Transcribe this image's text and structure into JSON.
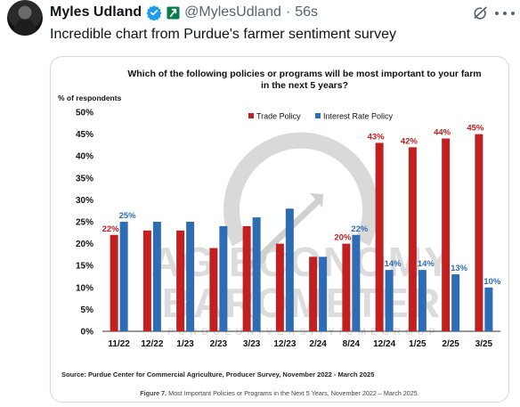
{
  "tweet": {
    "author_name": "Myles Udland",
    "handle": "@MylesUdland",
    "separator": "·",
    "time": "56s",
    "text": "Incredible chart from Purdue's farmer sentiment survey",
    "verified_color": "#1d9bf0",
    "affiliate_color": "#0a7c4c"
  },
  "chart_data": {
    "type": "bar",
    "title": "Which of the following policies or programs will be most important to your farm in the next 5 years?",
    "title_lines": [
      "Which of the following policies or programs will be most important to your farm",
      "in the next 5 years?"
    ],
    "ylabel": "% of respondents",
    "ylim": [
      0,
      50
    ],
    "yticks": [
      "0%",
      "5%",
      "10%",
      "15%",
      "20%",
      "25%",
      "30%",
      "35%",
      "40%",
      "45%",
      "50%"
    ],
    "categories": [
      "11/22",
      "12/22",
      "1/23",
      "2/23",
      "3/23",
      "12/23",
      "2/24",
      "8/24",
      "12/24",
      "1/25",
      "2/25",
      "3/25"
    ],
    "series": [
      {
        "name": "Trade Policy",
        "color": "#c0201f",
        "values": [
          22,
          23,
          23,
          19,
          24,
          20,
          17,
          20,
          43,
          42,
          44,
          45
        ],
        "labels": [
          "22%",
          "",
          "",
          "",
          "",
          "",
          "",
          "20%",
          "43%",
          "42%",
          "44%",
          "45%"
        ]
      },
      {
        "name": "Interest Rate Policy",
        "color": "#2e6db4",
        "values": [
          25,
          25,
          25,
          24,
          26,
          28,
          17,
          22,
          14,
          14,
          13,
          10
        ],
        "labels": [
          "25%",
          "",
          "",
          "",
          "",
          "",
          "",
          "22%",
          "14%",
          "14%",
          "13%",
          "10%"
        ]
      }
    ],
    "legend": "top-right",
    "grid": false,
    "source": "Source:  Purdue Center for Commercial Agriculture, Producer Survey, November 2022 - March 2025",
    "watermark_lines": [
      "AG ECONOMY",
      "BAROMETER",
      "P U R D U E   U N I V E R S I T Y   /   C M E   G R O U P"
    ],
    "caption_bold": "Figure 7.",
    "caption": " Most Important Policies or Programs in the Next 5 Years, November 2022 – March 2025."
  }
}
